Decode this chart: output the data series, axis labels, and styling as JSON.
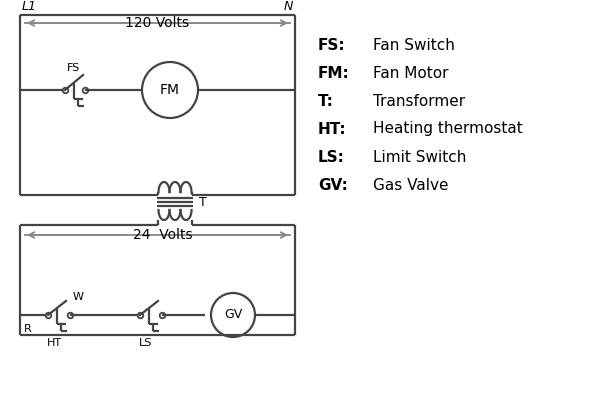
{
  "background_color": "#ffffff",
  "line_color": "#444444",
  "arrow_color": "#888888",
  "text_color": "#000000",
  "legend_items": [
    [
      "FS:",
      "Fan Switch"
    ],
    [
      "FM:",
      "Fan Motor"
    ],
    [
      "T:",
      "Transformer"
    ],
    [
      "HT:",
      "Heating thermostat"
    ],
    [
      "LS:",
      "Limit Switch"
    ],
    [
      "GV:",
      "Gas Valve"
    ]
  ],
  "label_L1": "L1",
  "label_N": "N",
  "label_120V": "120 Volts",
  "label_24V": "24  Volts",
  "label_T": "T",
  "label_FS": "FS",
  "label_FM": "FM",
  "label_GV": "GV",
  "label_R": "R",
  "label_W": "W",
  "label_HT": "HT",
  "label_LS": "LS"
}
